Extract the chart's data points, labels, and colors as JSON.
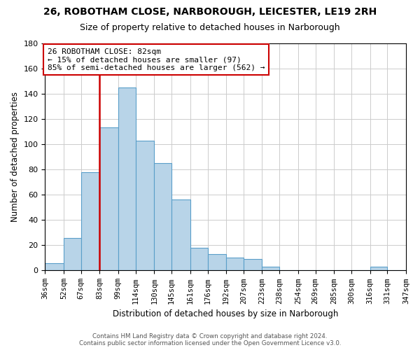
{
  "title": "26, ROBOTHAM CLOSE, NARBOROUGH, LEICESTER, LE19 2RH",
  "subtitle": "Size of property relative to detached houses in Narborough",
  "xlabel": "Distribution of detached houses by size in Narborough",
  "ylabel": "Number of detached properties",
  "bar_edges": [
    36,
    52,
    67,
    83,
    99,
    114,
    130,
    145,
    161,
    176,
    192,
    207,
    223,
    238,
    254,
    269,
    285,
    300,
    316,
    331,
    347
  ],
  "bar_heights": [
    6,
    26,
    78,
    113,
    145,
    103,
    85,
    56,
    18,
    13,
    10,
    9,
    3,
    0,
    0,
    0,
    0,
    0,
    3,
    0
  ],
  "bar_color": "#b8d4e8",
  "bar_edgecolor": "#5a9ec9",
  "vline_x": 83,
  "vline_color": "#cc0000",
  "annotation_line1": "26 ROBOTHAM CLOSE: 82sqm",
  "annotation_line2": "← 15% of detached houses are smaller (97)",
  "annotation_line3": "85% of semi-detached houses are larger (562) →",
  "annotation_box_edgecolor": "#cc0000",
  "annotation_box_facecolor": "white",
  "ylim": [
    0,
    180
  ],
  "yticks": [
    0,
    20,
    40,
    60,
    80,
    100,
    120,
    140,
    160,
    180
  ],
  "tick_labels": [
    "36sqm",
    "52sqm",
    "67sqm",
    "83sqm",
    "99sqm",
    "114sqm",
    "130sqm",
    "145sqm",
    "161sqm",
    "176sqm",
    "192sqm",
    "207sqm",
    "223sqm",
    "238sqm",
    "254sqm",
    "269sqm",
    "285sqm",
    "300sqm",
    "316sqm",
    "331sqm",
    "347sqm"
  ],
  "footer_line1": "Contains HM Land Registry data © Crown copyright and database right 2024.",
  "footer_line2": "Contains public sector information licensed under the Open Government Licence v3.0.",
  "bg_color": "#ffffff",
  "grid_color": "#cccccc"
}
